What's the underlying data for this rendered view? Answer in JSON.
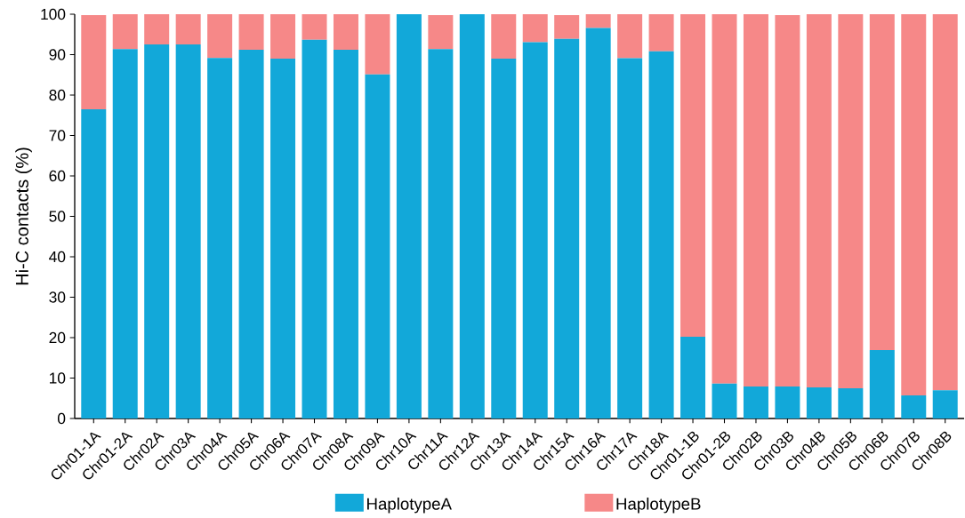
{
  "chart_data": {
    "type": "bar",
    "stacked": true,
    "ylabel": "Hi-C contacts (%)",
    "categories": [
      "Chr01-1A",
      "Chr01-2A",
      "Chr02A",
      "Chr03A",
      "Chr04A",
      "Chr05A",
      "Chr06A",
      "Chr07A",
      "Chr08A",
      "Chr09A",
      "Chr10A",
      "Chr11A",
      "Chr12A",
      "Chr13A",
      "Chr14A",
      "Chr15A",
      "Chr16A",
      "Chr17A",
      "Chr18A",
      "Chr01-1B",
      "Chr01-2B",
      "Chr02B",
      "Chr03B",
      "Chr04B",
      "Chr05B",
      "Chr06B",
      "Chr07B",
      "Chr08B"
    ],
    "series": [
      {
        "name": "HaplotypeA",
        "color": "#12a8d9",
        "values": [
          76.5,
          91.4,
          92.5,
          92.5,
          89.2,
          91.2,
          89.0,
          93.7,
          91.2,
          85.1,
          100,
          91.4,
          100,
          89.0,
          93.1,
          93.9,
          96.6,
          89.1,
          90.8,
          20.2,
          8.6,
          7.9,
          7.9,
          7.7,
          7.5,
          16.9,
          5.7,
          7.0
        ]
      },
      {
        "name": "HaplotypeB",
        "color": "#f68888",
        "values": [
          23.3,
          8.6,
          7.5,
          7.5,
          10.8,
          8.8,
          11.0,
          6.3,
          8.8,
          14.9,
          0,
          8.4,
          0,
          11.0,
          6.9,
          5.9,
          3.4,
          10.9,
          9.2,
          79.8,
          91.4,
          92.1,
          91.9,
          92.3,
          92.5,
          83.1,
          94.3,
          93.0
        ]
      }
    ],
    "ylim": [
      0,
      100
    ],
    "yticks": [
      0,
      10,
      20,
      30,
      40,
      50,
      60,
      70,
      80,
      90,
      100
    ],
    "grid": false,
    "legend": "bottom"
  }
}
